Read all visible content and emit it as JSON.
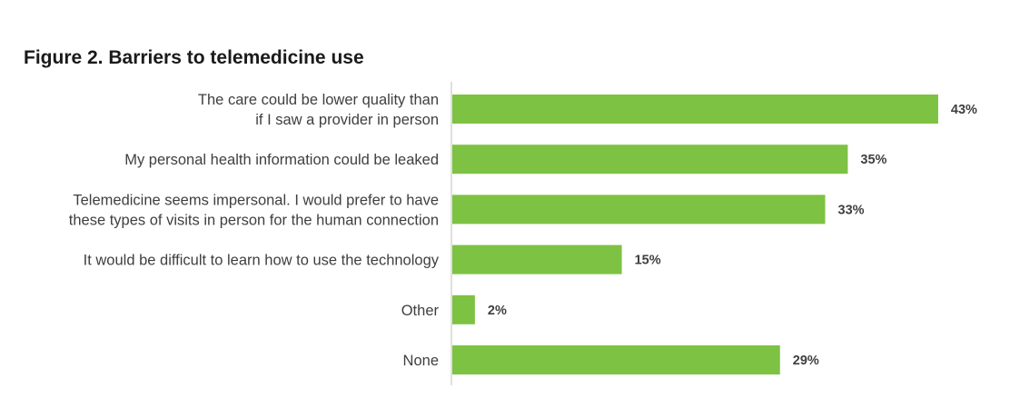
{
  "chart_data": {
    "type": "bar",
    "orientation": "horizontal",
    "title": "Figure 2. Barriers to telemedicine use",
    "categories": [
      [
        "The care could be lower quality than",
        "if I saw a provider in person"
      ],
      [
        "My personal health information could be leaked"
      ],
      [
        "Telemedicine seems impersonal. I would prefer to have",
        "these types of visits in person for the human connection"
      ],
      [
        "It would be difficult to learn how to use the technology"
      ],
      [
        "Other"
      ],
      [
        "None"
      ]
    ],
    "values": [
      43,
      35,
      33,
      15,
      2,
      29
    ],
    "value_labels": [
      "43%",
      "35%",
      "33%",
      "15%",
      "2%",
      "29%"
    ],
    "unit": "%",
    "xlim": [
      0,
      50
    ],
    "bar_color": "#7dc242",
    "axis_color": "#bfbfbf",
    "grid": false,
    "legend": "none"
  }
}
